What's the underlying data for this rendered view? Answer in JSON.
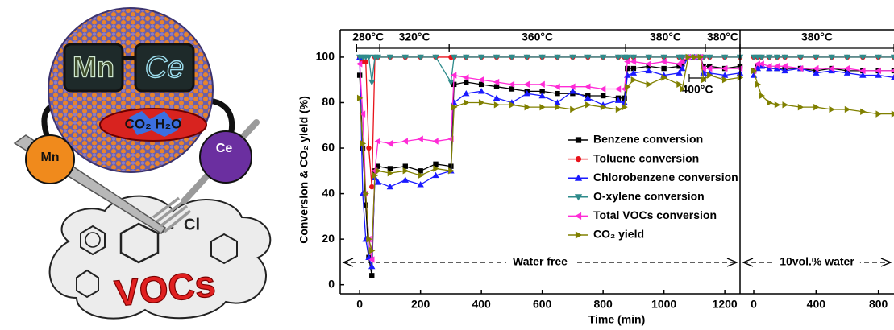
{
  "illustration": {
    "mn_lens": "Mn",
    "ce_lens": "Ce",
    "products": "CO₂ H₂O",
    "mn_hand": "Mn",
    "ce_hand": "Ce",
    "chlorine": "Cl",
    "vocs": "VOCs"
  },
  "chart_data": [
    {
      "type": "line",
      "ylabel": "Conversion & CO₂ yield (%)",
      "xlabel": "Time (min)",
      "xlim": [
        -64,
        1250
      ],
      "xticks": [
        0,
        200,
        400,
        600,
        800,
        1000,
        1200
      ],
      "ylim": [
        -4,
        112
      ],
      "yticks": [
        0,
        20,
        40,
        60,
        80,
        100
      ],
      "regime": "Water free",
      "temperatures": [
        {
          "label": "280°C",
          "start": -10,
          "end": 66
        },
        {
          "label": "320°C",
          "start": 66,
          "end": 294
        },
        {
          "label": "360°C",
          "start": 294,
          "end": 874
        },
        {
          "label": "380°C",
          "start": 874,
          "end": 1136
        },
        {
          "label": "380°C",
          "start": 1136,
          "end": 1250
        }
      ],
      "inset_temperature": {
        "label": "400°C",
        "start": 1083,
        "end": 1136
      },
      "x": [
        0,
        10,
        20,
        30,
        40,
        50,
        60,
        100,
        150,
        200,
        250,
        300,
        310,
        350,
        400,
        450,
        500,
        550,
        600,
        650,
        700,
        750,
        800,
        850,
        870,
        880,
        900,
        950,
        1000,
        1050,
        1060,
        1080,
        1100,
        1120,
        1130,
        1150,
        1200,
        1250
      ],
      "series": [
        {
          "name": "Benzene conversion",
          "color": "#000000",
          "marker": "square",
          "values": [
            92,
            60,
            35,
            12,
            4,
            50,
            52,
            51,
            52,
            50,
            53,
            52,
            88,
            89,
            88,
            87,
            86,
            85,
            85,
            84,
            84,
            83,
            83,
            82,
            82,
            95,
            95,
            96,
            95,
            96,
            97,
            100,
            100,
            100,
            96,
            96,
            95,
            96
          ]
        },
        {
          "name": "Toluene conversion",
          "color": "#e8121a",
          "marker": "circle",
          "values": [
            100,
            98,
            98,
            60,
            43,
            100,
            100,
            100,
            100,
            100,
            100,
            100,
            100,
            100,
            100,
            100,
            100,
            100,
            100,
            100,
            100,
            100,
            100,
            100,
            100,
            100,
            100,
            100,
            100,
            100,
            100,
            100,
            100,
            100,
            100,
            100,
            100,
            100
          ]
        },
        {
          "name": "Chlorobenzene conversion",
          "color": "#1a1aff",
          "marker": "triangle-up",
          "values": [
            100,
            40,
            20,
            12,
            8,
            47,
            45,
            43,
            46,
            44,
            48,
            50,
            80,
            84,
            85,
            82,
            80,
            84,
            83,
            80,
            85,
            82,
            79,
            81,
            80,
            92,
            93,
            94,
            92,
            93,
            95,
            100,
            100,
            100,
            93,
            93,
            92,
            93
          ]
        },
        {
          "name": "O-xylene conversion",
          "color": "#2e8b8b",
          "marker": "triangle-down",
          "values": [
            100,
            100,
            100,
            100,
            89,
            100,
            100,
            100,
            100,
            100,
            100,
            89,
            100,
            100,
            100,
            100,
            100,
            100,
            100,
            100,
            100,
            100,
            100,
            100,
            100,
            100,
            100,
            100,
            100,
            100,
            100,
            100,
            100,
            100,
            100,
            100,
            100,
            100
          ]
        },
        {
          "name": "Total VOCs conversion",
          "color": "#ff2bd6",
          "marker": "triangle-left",
          "values": [
            97,
            75,
            40,
            20,
            11,
            50,
            63,
            62,
            63,
            64,
            63,
            64,
            92,
            91,
            90,
            89,
            88,
            88,
            88,
            87,
            87,
            87,
            86,
            86,
            86,
            98,
            98,
            97,
            98,
            97,
            98,
            100,
            100,
            100,
            95,
            95,
            95,
            95
          ]
        },
        {
          "name": "CO₂ yield",
          "color": "#808000",
          "marker": "triangle-right",
          "values": [
            82,
            62,
            40,
            20,
            15,
            48,
            50,
            49,
            50,
            48,
            51,
            50,
            78,
            80,
            80,
            79,
            79,
            78,
            78,
            78,
            77,
            79,
            78,
            77,
            78,
            87,
            90,
            88,
            91,
            88,
            86,
            100,
            100,
            100,
            90,
            92,
            90,
            91
          ]
        }
      ]
    },
    {
      "type": "line",
      "xlim": [
        -88,
        900
      ],
      "xticks": [
        0,
        400,
        800
      ],
      "ylim": [
        -4,
        112
      ],
      "regime": "10vol.% water",
      "temperatures": [
        {
          "label": "380°C",
          "start": -88,
          "end": 900
        }
      ],
      "x": [
        0,
        25,
        50,
        100,
        150,
        200,
        300,
        400,
        500,
        600,
        700,
        800,
        900
      ],
      "series": [
        {
          "color": "#000000",
          "marker": "square",
          "values": [
            94,
            96,
            96,
            95,
            95,
            95,
            95,
            94,
            95,
            94,
            94,
            94,
            94
          ]
        },
        {
          "color": "#e8121a",
          "marker": "circle",
          "values": [
            100,
            100,
            100,
            100,
            100,
            100,
            100,
            100,
            100,
            100,
            100,
            100,
            100
          ]
        },
        {
          "color": "#1a1aff",
          "marker": "triangle-up",
          "values": [
            92,
            95,
            96,
            95,
            95,
            94,
            95,
            93,
            94,
            93,
            92,
            92,
            91
          ]
        },
        {
          "color": "#2e8b8b",
          "marker": "triangle-down",
          "values": [
            100,
            100,
            100,
            100,
            100,
            100,
            100,
            100,
            100,
            100,
            100,
            100,
            100
          ]
        },
        {
          "color": "#ff2bd6",
          "marker": "triangle-left",
          "values": [
            94,
            97,
            97,
            96,
            96,
            96,
            95,
            95,
            95,
            95,
            94,
            94,
            94
          ]
        },
        {
          "color": "#808000",
          "marker": "triangle-right",
          "values": [
            94,
            88,
            83,
            80,
            79,
            79,
            78,
            78,
            77,
            77,
            76,
            75,
            75
          ]
        }
      ]
    }
  ]
}
